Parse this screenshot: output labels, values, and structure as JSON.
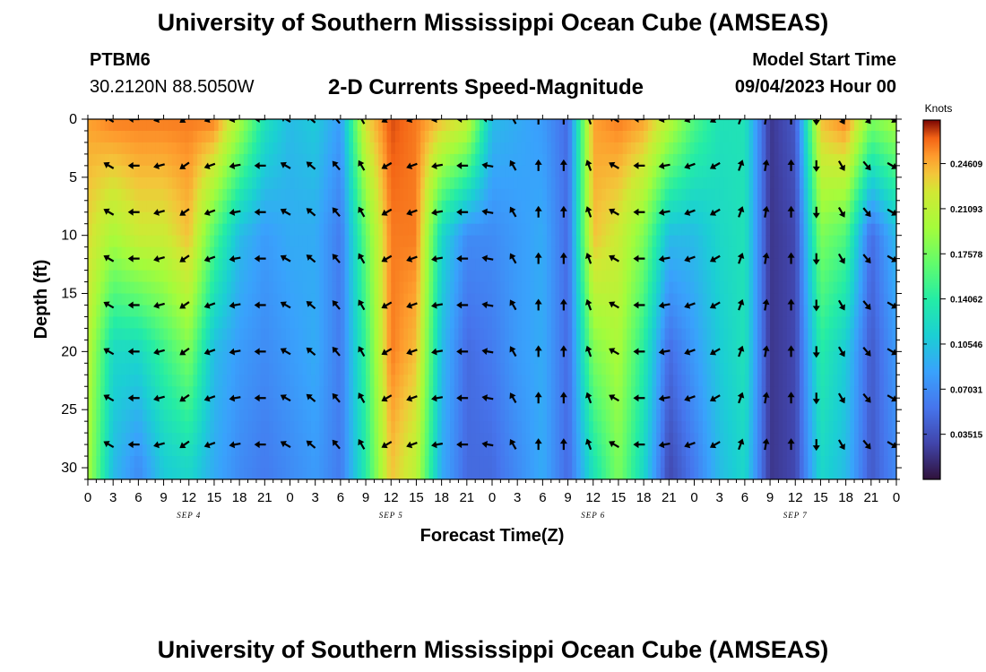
{
  "header": {
    "title": "University of Southern Mississippi Ocean Cube (AMSEAS)",
    "station": "PTBM6",
    "coordinates": "30.2120N  88.5050W",
    "subtitle": "2-D Currents Speed-Magnitude",
    "model_start_label": "Model Start Time",
    "model_start_value": "09/04/2023 Hour 00"
  },
  "footer": {
    "title": "University of Southern Mississippi Ocean Cube (AMSEAS)"
  },
  "chart_data": {
    "type": "heatmap",
    "title": "2-D Currents Speed-Magnitude",
    "xlabel": "Forecast Time(Z)",
    "ylabel": "Depth (ft)",
    "x_ticks": [
      "0",
      "3",
      "6",
      "9",
      "12",
      "15",
      "18",
      "21",
      "0",
      "3",
      "6",
      "9",
      "12",
      "15",
      "18",
      "21",
      "0",
      "3",
      "6",
      "9",
      "12",
      "15",
      "18",
      "21",
      "0",
      "3",
      "6",
      "9",
      "12",
      "15",
      "18",
      "21",
      "0"
    ],
    "x_range_hours": [
      0,
      96
    ],
    "day_labels": [
      {
        "hour": 12,
        "label": "SEP 4"
      },
      {
        "hour": 36,
        "label": "SEP 5"
      },
      {
        "hour": 60,
        "label": "SEP 6"
      },
      {
        "hour": 84,
        "label": "SEP 7"
      }
    ],
    "y_ticks": [
      "0",
      "5",
      "10",
      "15",
      "20",
      "25",
      "30"
    ],
    "ylim_ft": [
      0,
      31
    ],
    "colorbar": {
      "unit": "Knots",
      "range": [
        0,
        0.28
      ],
      "ticks": [
        "0.24609",
        "0.21093",
        "0.17578",
        "0.14062",
        "0.10546",
        "0.07031",
        "0.03515"
      ],
      "tick_values": [
        0.24609,
        0.21093,
        0.17578,
        0.14062,
        0.10546,
        0.07031,
        0.03515
      ]
    },
    "speed_profiles_knots": [
      {
        "hour": 0,
        "depth_ft": [
          0,
          10,
          20,
          30
        ],
        "speed": [
          0.25,
          0.23,
          0.21,
          0.2
        ]
      },
      {
        "hour": 3,
        "depth_ft": [
          0,
          10,
          20,
          30
        ],
        "speed": [
          0.26,
          0.2,
          0.12,
          0.1
        ]
      },
      {
        "hour": 6,
        "depth_ft": [
          0,
          10,
          20,
          30
        ],
        "speed": [
          0.26,
          0.22,
          0.12,
          0.07
        ]
      },
      {
        "hour": 9,
        "depth_ft": [
          0,
          10,
          20,
          30
        ],
        "speed": [
          0.26,
          0.22,
          0.15,
          0.11
        ]
      },
      {
        "hour": 12,
        "depth_ft": [
          0,
          10,
          20,
          30
        ],
        "speed": [
          0.26,
          0.24,
          0.18,
          0.12
        ]
      },
      {
        "hour": 15,
        "depth_ft": [
          0,
          10,
          20,
          30
        ],
        "speed": [
          0.26,
          0.16,
          0.1,
          0.09
        ]
      },
      {
        "hour": 18,
        "depth_ft": [
          0,
          10,
          20,
          30
        ],
        "speed": [
          0.2,
          0.1,
          0.08,
          0.07
        ]
      },
      {
        "hour": 21,
        "depth_ft": [
          0,
          10,
          20,
          30
        ],
        "speed": [
          0.13,
          0.08,
          0.07,
          0.06
        ]
      },
      {
        "hour": 24,
        "depth_ft": [
          0,
          10,
          20,
          30
        ],
        "speed": [
          0.1,
          0.09,
          0.08,
          0.07
        ]
      },
      {
        "hour": 27,
        "depth_ft": [
          0,
          10,
          20,
          30
        ],
        "speed": [
          0.11,
          0.09,
          0.09,
          0.08
        ]
      },
      {
        "hour": 30,
        "depth_ft": [
          0,
          10,
          20,
          30
        ],
        "speed": [
          0.08,
          0.06,
          0.06,
          0.06
        ]
      },
      {
        "hour": 33,
        "depth_ft": [
          0,
          10,
          20,
          30
        ],
        "speed": [
          0.23,
          0.17,
          0.15,
          0.14
        ]
      },
      {
        "hour": 36,
        "depth_ft": [
          0,
          10,
          20,
          30
        ],
        "speed": [
          0.27,
          0.26,
          0.26,
          0.24
        ]
      },
      {
        "hour": 39,
        "depth_ft": [
          0,
          10,
          20,
          30
        ],
        "speed": [
          0.26,
          0.26,
          0.24,
          0.21
        ]
      },
      {
        "hour": 42,
        "depth_ft": [
          0,
          10,
          20,
          30
        ],
        "speed": [
          0.24,
          0.12,
          0.1,
          0.09
        ]
      },
      {
        "hour": 45,
        "depth_ft": [
          0,
          10,
          20,
          30
        ],
        "speed": [
          0.22,
          0.07,
          0.05,
          0.05
        ]
      },
      {
        "hour": 48,
        "depth_ft": [
          0,
          10,
          20,
          30
        ],
        "speed": [
          0.1,
          0.07,
          0.06,
          0.05
        ]
      },
      {
        "hour": 51,
        "depth_ft": [
          0,
          10,
          20,
          30
        ],
        "speed": [
          0.09,
          0.08,
          0.08,
          0.07
        ]
      },
      {
        "hour": 54,
        "depth_ft": [
          0,
          10,
          20,
          30
        ],
        "speed": [
          0.08,
          0.09,
          0.09,
          0.09
        ]
      },
      {
        "hour": 57,
        "depth_ft": [
          0,
          10,
          20,
          30
        ],
        "speed": [
          0.05,
          0.05,
          0.05,
          0.05
        ]
      },
      {
        "hour": 60,
        "depth_ft": [
          0,
          10,
          20,
          30
        ],
        "speed": [
          0.25,
          0.24,
          0.18,
          0.13
        ]
      },
      {
        "hour": 63,
        "depth_ft": [
          0,
          10,
          20,
          30
        ],
        "speed": [
          0.26,
          0.22,
          0.2,
          0.18
        ]
      },
      {
        "hour": 66,
        "depth_ft": [
          0,
          10,
          20,
          30
        ],
        "speed": [
          0.25,
          0.18,
          0.14,
          0.12
        ]
      },
      {
        "hour": 69,
        "depth_ft": [
          0,
          10,
          20,
          30
        ],
        "speed": [
          0.21,
          0.1,
          0.05,
          0.03
        ]
      },
      {
        "hour": 72,
        "depth_ft": [
          0,
          10,
          20,
          30
        ],
        "speed": [
          0.16,
          0.1,
          0.08,
          0.06
        ]
      },
      {
        "hour": 75,
        "depth_ft": [
          0,
          10,
          20,
          30
        ],
        "speed": [
          0.13,
          0.12,
          0.11,
          0.1
        ]
      },
      {
        "hour": 78,
        "depth_ft": [
          0,
          10,
          20,
          30
        ],
        "speed": [
          0.13,
          0.13,
          0.13,
          0.12
        ]
      },
      {
        "hour": 81,
        "depth_ft": [
          0,
          10,
          20,
          30
        ],
        "speed": [
          0.02,
          0.02,
          0.02,
          0.02
        ]
      },
      {
        "hour": 84,
        "depth_ft": [
          0,
          10,
          20,
          30
        ],
        "speed": [
          0.04,
          0.03,
          0.03,
          0.03
        ]
      },
      {
        "hour": 87,
        "depth_ft": [
          0,
          10,
          20,
          30
        ],
        "speed": [
          0.24,
          0.18,
          0.14,
          0.12
        ]
      },
      {
        "hour": 90,
        "depth_ft": [
          0,
          10,
          20,
          30
        ],
        "speed": [
          0.26,
          0.16,
          0.11,
          0.1
        ]
      },
      {
        "hour": 93,
        "depth_ft": [
          0,
          10,
          20,
          30
        ],
        "speed": [
          0.18,
          0.05,
          0.04,
          0.04
        ]
      },
      {
        "hour": 96,
        "depth_ft": [
          0,
          10,
          20,
          30
        ],
        "speed": [
          0.2,
          0.1,
          0.08,
          0.07
        ]
      }
    ],
    "arrow_depths_ft": [
      0,
      4,
      8,
      12,
      16,
      20,
      24,
      28
    ],
    "arrow_hours": [
      2.5,
      5.5,
      8.5,
      11.5,
      14.5,
      17.5,
      20.5,
      23.5,
      26.5,
      29.5,
      32.5,
      35.5,
      38.5,
      41.5,
      44.5,
      47.5,
      50.5,
      53.5,
      56.5,
      59.5,
      62.5,
      65.5,
      68.5,
      71.5,
      74.5,
      77.5,
      80.5,
      83.5,
      86.5,
      89.5,
      92.5,
      95.5
    ],
    "arrow_direction_deg_by_time": [
      300,
      270,
      255,
      235,
      250,
      260,
      270,
      300,
      310,
      320,
      330,
      240,
      250,
      260,
      270,
      280,
      330,
      0,
      0,
      340,
      300,
      270,
      260,
      250,
      240,
      20,
      10,
      0,
      180,
      150,
      140,
      120
    ]
  }
}
